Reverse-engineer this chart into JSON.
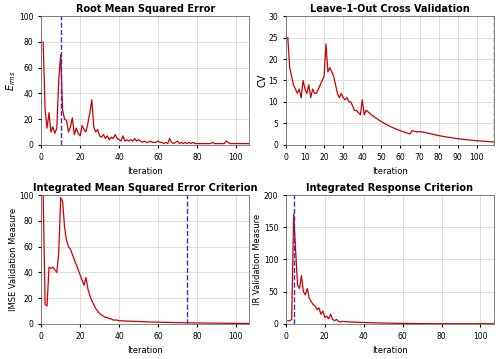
{
  "title_rmse": "Root Mean Squared Error",
  "title_cv": "Leave-1-Out Cross Validation",
  "title_imse": "Integrated Mean Squared Error Criterion",
  "title_ir": "Integrated Response Criterion",
  "ylabel_rmse": "$E_{rms}$",
  "ylabel_cv": "CV",
  "ylabel_imse": "IMSE Validation Measure",
  "ylabel_ir": "IR Validation Measure",
  "xlabel": "Iteration",
  "vline_rmse": 10,
  "vline_cv": 109,
  "vline_imse": 75,
  "vline_ir": 4,
  "line_color": "#CC0000",
  "vline_color": "#3333CC",
  "bg_color": "#ffffff",
  "grid_color": "#d0d0d0",
  "fig_color": "#ffffff",
  "xlim_rmse": [
    0,
    107
  ],
  "xlim_cv": [
    0,
    109
  ],
  "xlim_imse": [
    0,
    107
  ],
  "xlim_ir": [
    0,
    107
  ],
  "ylim_rmse": [
    0,
    100
  ],
  "ylim_cv": [
    0,
    30
  ],
  "ylim_imse": [
    0,
    100
  ],
  "ylim_ir": [
    0,
    200
  ],
  "xticks_rmse": [
    0,
    20,
    40,
    60,
    80,
    100
  ],
  "xticks_cv": [
    0,
    10,
    20,
    30,
    40,
    50,
    60,
    70,
    80,
    90,
    100
  ],
  "xticks_imse": [
    0,
    20,
    40,
    60,
    80,
    100
  ],
  "xticks_ir": [
    0,
    20,
    40,
    60,
    80,
    100
  ],
  "yticks_rmse": [
    0,
    20,
    40,
    60,
    80,
    100
  ],
  "yticks_cv": [
    0,
    5,
    10,
    15,
    20,
    25,
    30
  ],
  "yticks_imse": [
    0,
    20,
    40,
    60,
    80,
    100
  ],
  "yticks_ir": [
    0,
    50,
    100,
    150,
    200
  ]
}
